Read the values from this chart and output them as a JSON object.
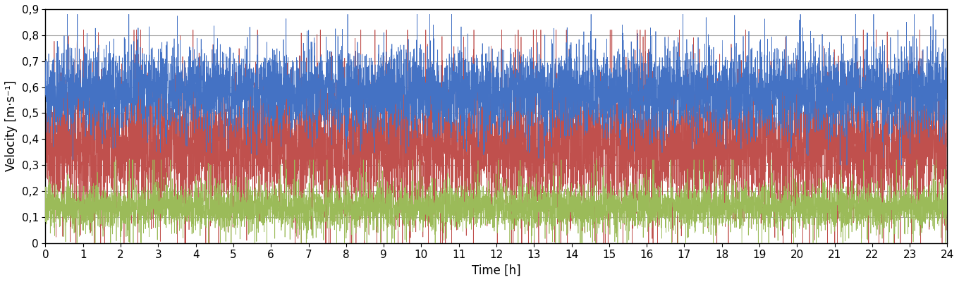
{
  "title": "",
  "xlabel": "Time [h]",
  "ylabel": "Velocity [m·s⁻¹]",
  "xlim": [
    0,
    24
  ],
  "ylim": [
    0,
    0.9
  ],
  "yticks": [
    0,
    0.1,
    0.2,
    0.3,
    0.4,
    0.5,
    0.6,
    0.7,
    0.8,
    0.9
  ],
  "ytick_labels": [
    "0",
    "0,1",
    "0,2",
    "0,3",
    "0,4",
    "0,5",
    "0,6",
    "0,7",
    "0,8",
    "0,9"
  ],
  "xticks": [
    0,
    1,
    2,
    3,
    4,
    5,
    6,
    7,
    8,
    9,
    10,
    11,
    12,
    13,
    14,
    15,
    16,
    17,
    18,
    19,
    20,
    21,
    22,
    23,
    24
  ],
  "n_points": 8640,
  "color1": "#4472C4",
  "color2": "#C0504D",
  "color3": "#9BBB59",
  "linewidth": 0.5,
  "grid_color": "#AAAAAA",
  "grid_linewidth": 0.8,
  "background_color": "#FFFFFF",
  "fig_width": 13.6,
  "fig_height": 4.0,
  "xlabel_fontsize": 12,
  "ylabel_fontsize": 12,
  "tick_fontsize": 11,
  "seed": 42
}
